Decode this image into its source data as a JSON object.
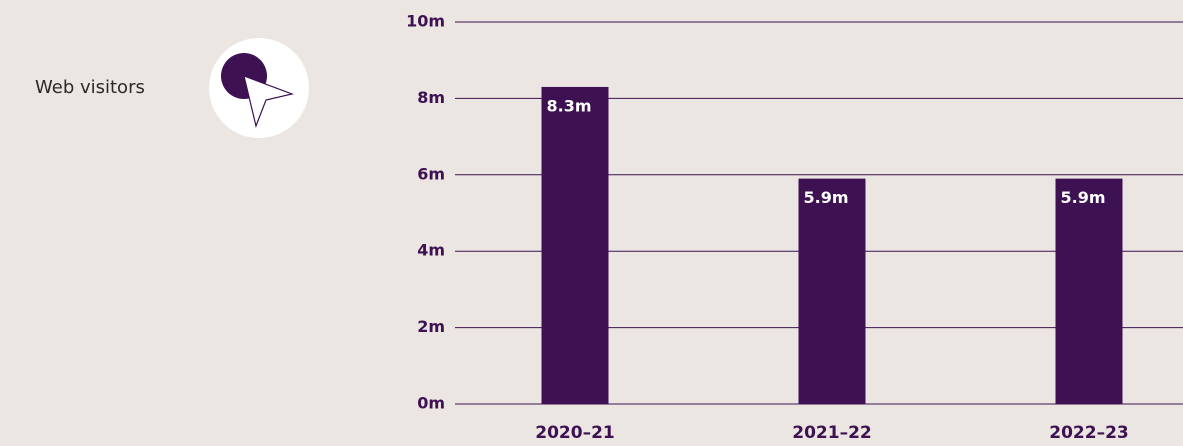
{
  "chart_data": {
    "type": "bar",
    "title": "Web visitors",
    "categories": [
      "2020–21",
      "2021–22",
      "2022–23"
    ],
    "values": [
      8.3,
      5.9,
      5.9
    ],
    "value_labels": [
      "8.3m",
      "5.9m",
      "5.9m"
    ],
    "color": "#3d1152",
    "ylim": [
      0,
      10
    ],
    "yticks": [
      {
        "value": 0,
        "label": "0m"
      },
      {
        "value": 2,
        "label": "2m"
      },
      {
        "value": 4,
        "label": "4m"
      },
      {
        "value": 6,
        "label": "6m"
      },
      {
        "value": 8,
        "label": "8m"
      },
      {
        "value": 10,
        "label": "10m"
      }
    ],
    "grid": true
  }
}
